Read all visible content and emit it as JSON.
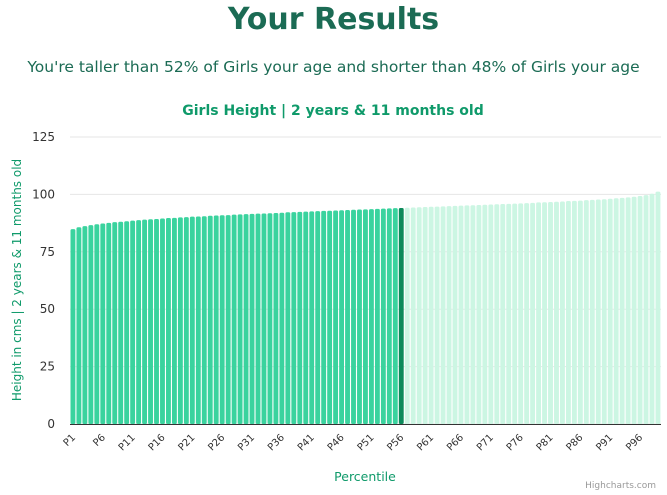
{
  "page": {
    "title": "Your Results",
    "subtitle": "You're taller than 52% of Girls your age and shorter than 48% of Girls your age",
    "credits": "Highcharts.com"
  },
  "colors": {
    "heading": "#1b6b54",
    "accent": "#0f9a6a",
    "bar_below": "#3ad39e",
    "bar_current": "#0b8a5a",
    "bar_above": "#ccf6e3",
    "grid": "#e6e6e6",
    "axis_text": "#333333"
  },
  "chart_data": {
    "type": "bar",
    "title": "Girls Height | 2 years & 11 months old",
    "xlabel": "Percentile",
    "ylabel": "Height in cms | 2 years & 11 months old",
    "ylim": [
      0,
      125
    ],
    "yticks": [
      0,
      25,
      50,
      75,
      100,
      125
    ],
    "grid": true,
    "highlight_index": 55,
    "categories": [
      "P1",
      "P2",
      "P3",
      "P4",
      "P5",
      "P6",
      "P7",
      "P8",
      "P9",
      "P10",
      "P11",
      "P12",
      "P13",
      "P14",
      "P15",
      "P16",
      "P17",
      "P18",
      "P19",
      "P20",
      "P21",
      "P22",
      "P23",
      "P24",
      "P25",
      "P26",
      "P27",
      "P28",
      "P29",
      "P30",
      "P31",
      "P32",
      "P33",
      "P34",
      "P35",
      "P36",
      "P37",
      "P38",
      "P39",
      "P40",
      "P41",
      "P42",
      "P43",
      "P44",
      "P45",
      "P46",
      "P47",
      "P48",
      "P49",
      "P50",
      "P51",
      "P52",
      "P53",
      "P54",
      "P55",
      "P56",
      "P57",
      "P58",
      "P59",
      "P60",
      "P61",
      "P62",
      "P63",
      "P64",
      "P65",
      "P66",
      "P67",
      "P68",
      "P69",
      "P70",
      "P71",
      "P72",
      "P73",
      "P74",
      "P75",
      "P76",
      "P77",
      "P78",
      "P79",
      "P80",
      "P81",
      "P82",
      "P83",
      "P84",
      "P85",
      "P86",
      "P87",
      "P88",
      "P89",
      "P90",
      "P91",
      "P92",
      "P93",
      "P94",
      "P95",
      "P96",
      "P97",
      "P98",
      "P99"
    ],
    "tick_labels": [
      "P1",
      "P6",
      "P11",
      "P16",
      "P21",
      "P26",
      "P31",
      "P36",
      "P41",
      "P46",
      "P51",
      "P56",
      "P61",
      "P66",
      "P71",
      "P76",
      "P81",
      "P86",
      "P91",
      "P96"
    ],
    "values": [
      84.9,
      85.7,
      86.2,
      86.6,
      87.0,
      87.3,
      87.6,
      87.9,
      88.1,
      88.3,
      88.6,
      88.8,
      89.0,
      89.2,
      89.3,
      89.5,
      89.7,
      89.8,
      90.0,
      90.1,
      90.3,
      90.4,
      90.5,
      90.7,
      90.8,
      90.9,
      91.0,
      91.2,
      91.3,
      91.4,
      91.5,
      91.6,
      91.7,
      91.8,
      91.9,
      92.0,
      92.2,
      92.3,
      92.4,
      92.5,
      92.6,
      92.7,
      92.8,
      92.9,
      93.0,
      93.1,
      93.2,
      93.3,
      93.4,
      93.5,
      93.6,
      93.7,
      93.8,
      93.9,
      94.0,
      94.1,
      94.2,
      94.3,
      94.4,
      94.5,
      94.6,
      94.7,
      94.8,
      94.9,
      95.0,
      95.1,
      95.2,
      95.3,
      95.4,
      95.5,
      95.6,
      95.7,
      95.8,
      95.9,
      96.0,
      96.1,
      96.2,
      96.3,
      96.5,
      96.6,
      96.7,
      96.8,
      96.9,
      97.1,
      97.2,
      97.3,
      97.5,
      97.6,
      97.8,
      97.9,
      98.1,
      98.3,
      98.5,
      98.7,
      99.0,
      99.3,
      99.7,
      100.3,
      101.2
    ]
  }
}
